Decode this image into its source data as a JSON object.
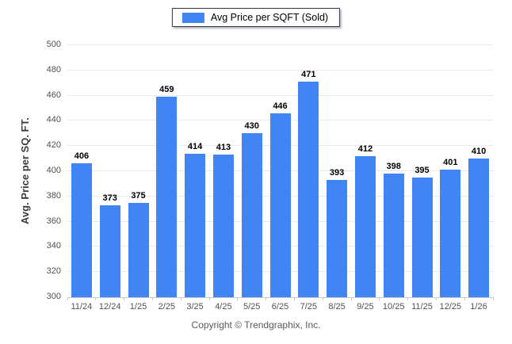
{
  "legend": {
    "label": "Avg Price per SQFT (Sold)"
  },
  "footer": {
    "copyright": "Copyright © Trendgraphix, Inc."
  },
  "colors": {
    "bar": "#4184f3",
    "gridline": "#e9e9e9",
    "baseline": "#c9c9c9",
    "axis_tick": "#c9c9c9",
    "tick_label": "#55504b",
    "value_label": "#000000"
  },
  "chart_data": {
    "type": "bar",
    "title": "Avg Price per SQFT (Sold)",
    "xlabel": "",
    "ylabel": "Avg. Price per SQ. FT.",
    "categories": [
      "11/24",
      "12/24",
      "1/25",
      "2/25",
      "3/25",
      "4/25",
      "5/25",
      "6/25",
      "7/25",
      "8/25",
      "9/25",
      "10/25",
      "11/25",
      "12/25",
      "1/26"
    ],
    "values": [
      406,
      373,
      375,
      459,
      414,
      413,
      430,
      446,
      471,
      393,
      412,
      398,
      395,
      401,
      410
    ],
    "ylim": [
      300,
      500
    ],
    "ytick_step": 20,
    "grid": true,
    "value_labels": true,
    "legend_position": "top-center"
  }
}
